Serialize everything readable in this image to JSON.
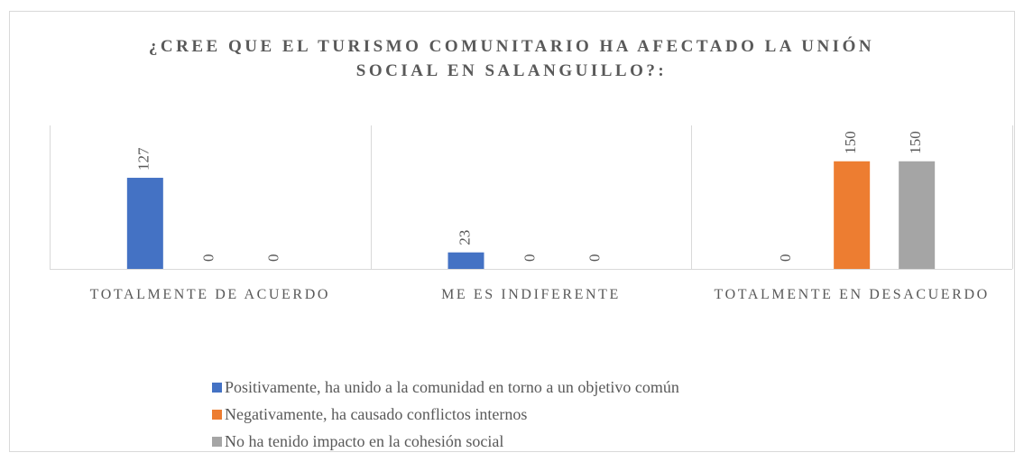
{
  "chart_data": {
    "type": "bar",
    "title": "¿CREE QUE EL TURISMO COMUNITARIO HA AFECTADO LA UNIÓN SOCIAL EN SALANGUILLO?:",
    "categories": [
      "TOTALMENTE DE ACUERDO",
      "ME ES INDIFERENTE",
      "TOTALMENTE EN DESACUERDO"
    ],
    "series": [
      {
        "name": "Positivamente, ha unido a la comunidad en torno a un objetivo común",
        "color": "#4472c4",
        "values": [
          127,
          23,
          0
        ]
      },
      {
        "name": "Negativamente, ha causado conflictos internos",
        "color": "#ed7d31",
        "values": [
          0,
          0,
          150
        ]
      },
      {
        "name": "No ha tenido impacto en la cohesión social",
        "color": "#a5a5a5",
        "values": [
          0,
          0,
          150
        ]
      }
    ],
    "ylim": [
      0,
      200
    ],
    "grid": false,
    "legend": "bottom"
  }
}
